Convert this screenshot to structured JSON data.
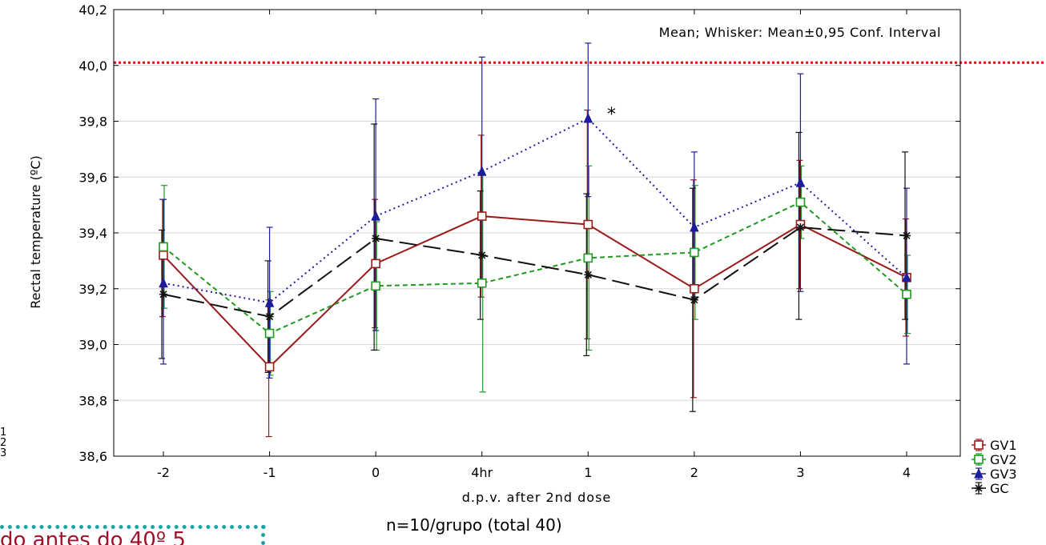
{
  "chart_data": {
    "type": "line",
    "annotation": "Mean; Whisker: Mean±0,95 Conf. Interval",
    "xlabel": "d.p.v. after 2nd dose",
    "ylabel": "Rectal temperature (ºC)",
    "categories": [
      "-2",
      "-1",
      "0",
      "4hr",
      "1",
      "2",
      "3",
      "4"
    ],
    "ylim": [
      38.6,
      40.2
    ],
    "yticks": [
      "38,6",
      "38,8",
      "39,0",
      "39,2",
      "39,4",
      "39,6",
      "39,8",
      "40,0",
      "40,2"
    ],
    "ytick_values": [
      38.6,
      38.8,
      39.0,
      39.2,
      39.4,
      39.6,
      39.8,
      40.0,
      40.2
    ],
    "grid": true,
    "reference_line": {
      "value": 40.01,
      "color": "#e01010",
      "style": "dotted"
    },
    "significance_marker": {
      "text": "*",
      "category": "1",
      "value": 39.83
    },
    "legend_position": "right-bottom",
    "series": [
      {
        "name": "GV1",
        "color": "#9b1b1b",
        "style": "solid",
        "marker": "square",
        "values": [
          39.32,
          38.92,
          39.29,
          39.46,
          39.43,
          39.2,
          39.43,
          39.24
        ],
        "lower": [
          39.1,
          38.67,
          39.06,
          39.17,
          39.02,
          38.81,
          39.2,
          39.03
        ],
        "upper": [
          39.52,
          39.16,
          39.52,
          39.75,
          39.84,
          39.59,
          39.66,
          39.45
        ]
      },
      {
        "name": "GV2",
        "color": "#1e9a1e",
        "style": "dashed",
        "marker": "square-open",
        "values": [
          39.35,
          39.04,
          39.21,
          39.22,
          39.31,
          39.33,
          39.51,
          39.18
        ],
        "lower": [
          39.13,
          38.89,
          38.98,
          38.83,
          38.98,
          39.09,
          39.38,
          39.04
        ],
        "upper": [
          39.57,
          39.19,
          39.44,
          39.61,
          39.64,
          39.57,
          39.64,
          39.32
        ]
      },
      {
        "name": "GV3",
        "color": "#1c1c9e",
        "style": "dotted",
        "marker": "triangle",
        "values": [
          39.22,
          39.15,
          39.46,
          39.62,
          39.81,
          39.42,
          39.58,
          39.24
        ],
        "lower": [
          38.93,
          38.88,
          39.05,
          39.21,
          39.53,
          39.17,
          39.19,
          38.93
        ],
        "upper": [
          39.52,
          39.42,
          39.88,
          40.03,
          40.08,
          39.69,
          39.97,
          39.56
        ]
      },
      {
        "name": "GC",
        "color": "#111111",
        "style": "longdash",
        "marker": "asterisk",
        "values": [
          39.18,
          39.1,
          39.38,
          39.32,
          39.25,
          39.16,
          39.42,
          39.39
        ],
        "lower": [
          38.95,
          38.9,
          38.98,
          39.09,
          38.96,
          38.76,
          39.09,
          39.09
        ],
        "upper": [
          39.41,
          39.3,
          39.79,
          39.55,
          39.54,
          39.56,
          39.76,
          39.69
        ]
      }
    ]
  },
  "caption": "n=10/grupo (total 40)",
  "banner_text": "do antes do 40º 5",
  "left_fragments": [
    "1",
    "2",
    "3"
  ]
}
